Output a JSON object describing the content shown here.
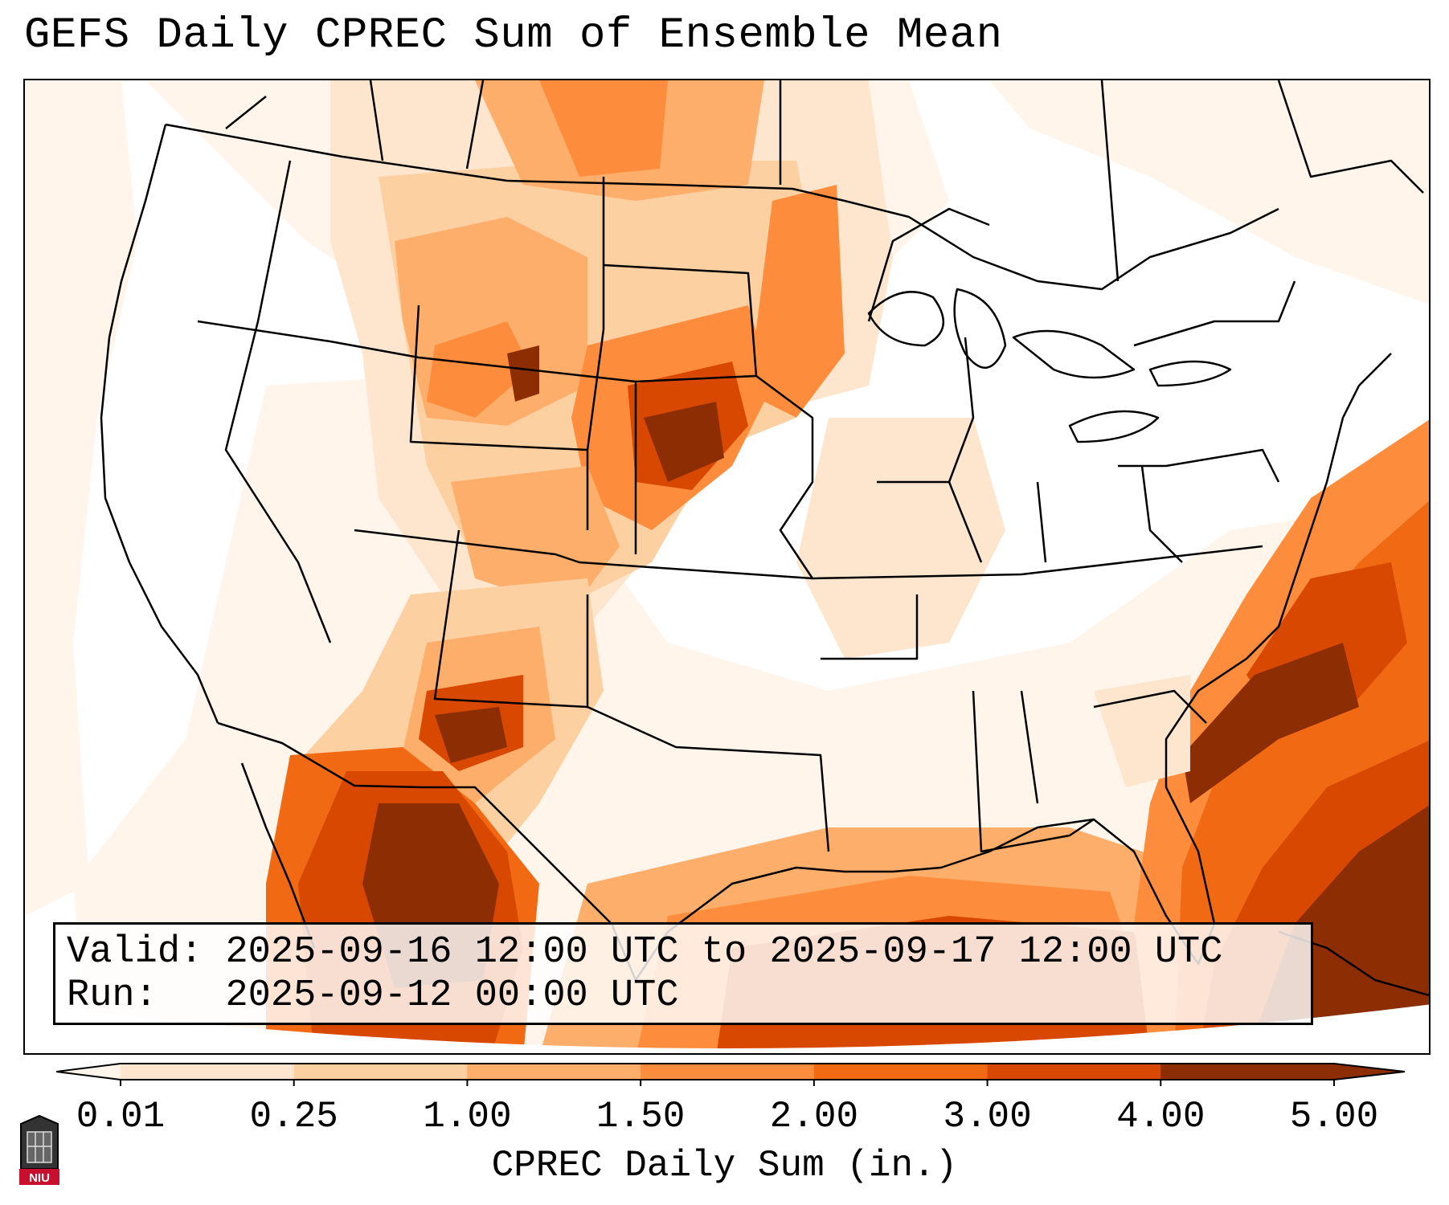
{
  "title": "GEFS Daily CPREC Sum of Ensemble Mean",
  "info": {
    "valid_label": "Valid:",
    "valid_value": "2025-09-16 12:00 UTC to 2025-09-17 12:00 UTC",
    "run_label": "Run:",
    "run_value": "2025-09-12 00:00 UTC"
  },
  "colorbar": {
    "label": "CPREC Daily Sum (in.)",
    "ticks": [
      "0.01",
      "0.25",
      "1.00",
      "1.50",
      "2.00",
      "3.00",
      "4.00",
      "5.00"
    ],
    "colors": [
      "#fff5eb",
      "#fee6ce",
      "#fdd0a2",
      "#fdae6b",
      "#fd8d3c",
      "#f16913",
      "#d94801",
      "#8c2d04"
    ],
    "extend": "both"
  },
  "logo": {
    "text": "NIU",
    "color": "#c8102e"
  }
}
